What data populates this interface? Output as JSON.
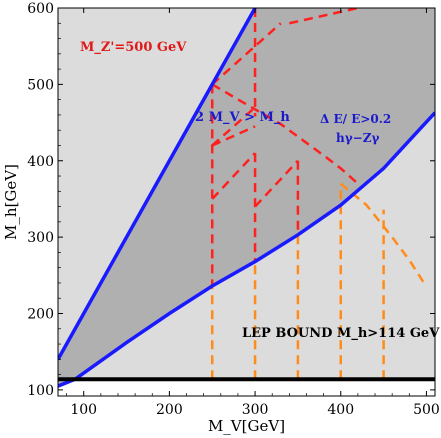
{
  "chart_data": {
    "type": "area",
    "title": "",
    "xlabel": "M_V[GeV]",
    "ylabel": "M_h[GeV]",
    "xlim": [
      70,
      510
    ],
    "ylim": [
      92,
      600
    ],
    "x_ticks": [
      100,
      200,
      300,
      400,
      500
    ],
    "y_ticks": [
      100,
      200,
      300,
      400,
      500,
      600
    ],
    "grid": false,
    "colors": {
      "unitarity_region": "#b0b0b0",
      "allowed_region": "#dcdcdc",
      "frame": "#000000",
      "boundary": "#1a1aff",
      "lep": "#000000",
      "mz500": "#ff2020",
      "other": "#ff8c1a",
      "annot_red": "#e01818",
      "annot_blue": "#1a1acc"
    },
    "series": [
      {
        "name": "2 M_V > M_h",
        "role": "upper boundary",
        "x": [
          70,
          100,
          150,
          200,
          250,
          280,
          300
        ],
        "y": [
          140,
          200,
          300,
          400,
          500,
          560,
          600
        ]
      },
      {
        "name": "Δ E/ E>0.2 hγ−Zγ",
        "role": "lower boundary",
        "x": [
          70,
          90,
          100,
          150,
          200,
          250,
          300,
          350,
          400,
          450,
          510
        ],
        "y": [
          105,
          114,
          122,
          162,
          200,
          236,
          268,
          303,
          342,
          390,
          463
        ]
      },
      {
        "name": "LEP BOUND M_h>114 GeV",
        "role": "horizontal bound",
        "x": [
          70,
          510
        ],
        "y": [
          114,
          114
        ]
      },
      {
        "name": "M_Z'=500 GeV",
        "role": "dashed contours",
        "x": [
          250,
          285,
          330,
          380,
          400,
          420
        ],
        "y": [
          500,
          477,
          448,
          407,
          390,
          370
        ]
      },
      {
        "name": "",
        "role": "orange dashed contour",
        "x": [
          400,
          430,
          460,
          480,
          500
        ],
        "y": [
          370,
          342,
          300,
          270,
          235
        ]
      }
    ],
    "vertical_dashed_x": [
      250,
      300,
      350,
      400,
      450
    ],
    "annotations": {
      "mz": "M_Z'=500 GeV",
      "unitarity": "2 M_V > M_h",
      "delta_e": "Δ E/ E>0.2",
      "channel": "hγ−Zγ",
      "lep": "LEP BOUND M_h>114 GeV"
    }
  }
}
